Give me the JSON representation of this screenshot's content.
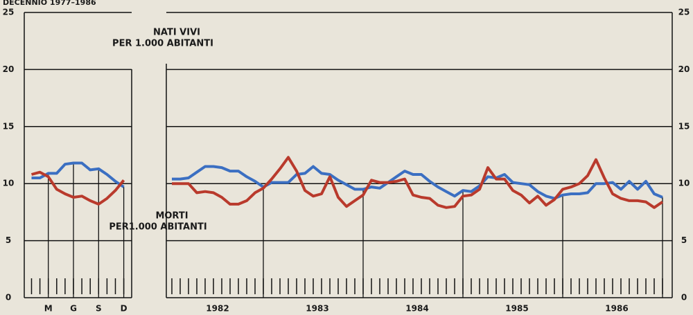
{
  "chart_data": [
    {
      "type": "line",
      "title": "DECENNIO 1977–1986",
      "categories": [
        null,
        null,
        "M",
        null,
        null,
        "G",
        null,
        null,
        "S",
        null,
        null,
        "D"
      ],
      "series": [
        {
          "color": "#3b6fc2",
          "values": [
            10.5,
            10.5,
            10.9,
            10.9,
            11.7,
            11.8,
            11.8,
            11.2,
            11.3,
            10.8,
            10.2,
            9.7
          ]
        },
        {
          "color": "#b93a2c",
          "values": [
            10.8,
            11.0,
            10.6,
            9.5,
            9.1,
            8.8,
            8.9,
            8.5,
            8.2,
            8.7,
            9.4,
            10.3
          ]
        }
      ],
      "ylim": [
        0,
        25
      ],
      "yticks": [
        0,
        5,
        10,
        15,
        20,
        25
      ],
      "grid": true,
      "annotations": [
        [
          "NATI VIVI",
          "PER 1.000 ABITANTI"
        ],
        [
          "MORTI",
          "PER1.000 ABITANTI"
        ]
      ]
    },
    {
      "type": "line",
      "categories": [
        null,
        null,
        null,
        null,
        null,
        "1982",
        null,
        null,
        null,
        null,
        null,
        null,
        null,
        null,
        null,
        null,
        null,
        "1983",
        null,
        null,
        null,
        null,
        null,
        null,
        null,
        null,
        null,
        null,
        null,
        "1984",
        null,
        null,
        null,
        null,
        null,
        null,
        null,
        null,
        null,
        null,
        null,
        "1985",
        null,
        null,
        null,
        null,
        null,
        null,
        null,
        null,
        null,
        null,
        null,
        "1986",
        null,
        null,
        null,
        null,
        null,
        null
      ],
      "series": [
        {
          "color": "#3b6fc2",
          "values": [
            10.4,
            10.4,
            10.5,
            11.0,
            11.5,
            11.5,
            11.4,
            11.1,
            11.1,
            10.6,
            10.2,
            9.7,
            10.1,
            10.1,
            10.1,
            10.8,
            10.9,
            11.5,
            10.9,
            10.8,
            10.3,
            9.9,
            9.5,
            9.5,
            9.7,
            9.6,
            10.1,
            10.6,
            11.1,
            10.8,
            10.8,
            10.2,
            9.7,
            9.3,
            8.9,
            9.4,
            9.3,
            9.8,
            10.6,
            10.5,
            10.8,
            10.1,
            10.0,
            9.9,
            9.3,
            8.9,
            8.7,
            9.0,
            9.1,
            9.1,
            9.2,
            10.0,
            10.0,
            10.1,
            9.5,
            10.2,
            9.5,
            10.2,
            9.1,
            8.8
          ]
        },
        {
          "color": "#b93a2c",
          "values": [
            10.0,
            10.0,
            10.0,
            9.2,
            9.3,
            9.2,
            8.8,
            8.2,
            8.2,
            8.5,
            9.2,
            9.6,
            10.4,
            11.3,
            12.3,
            11.1,
            9.4,
            8.9,
            9.1,
            10.6,
            8.8,
            8.0,
            8.5,
            9.0,
            10.3,
            10.1,
            10.1,
            10.2,
            10.4,
            9.0,
            8.8,
            8.7,
            8.1,
            7.9,
            8.0,
            8.9,
            9.0,
            9.5,
            11.4,
            10.4,
            10.4,
            9.4,
            9.0,
            8.3,
            8.9,
            8.1,
            8.6,
            9.5,
            9.7,
            10.0,
            10.7,
            12.1,
            10.5,
            9.1,
            8.7,
            8.5,
            8.5,
            8.4,
            7.9,
            8.4
          ]
        }
      ],
      "ylim": [
        0,
        25
      ],
      "yticks": [
        0,
        5,
        10,
        15,
        20,
        25
      ],
      "grid": true
    }
  ]
}
